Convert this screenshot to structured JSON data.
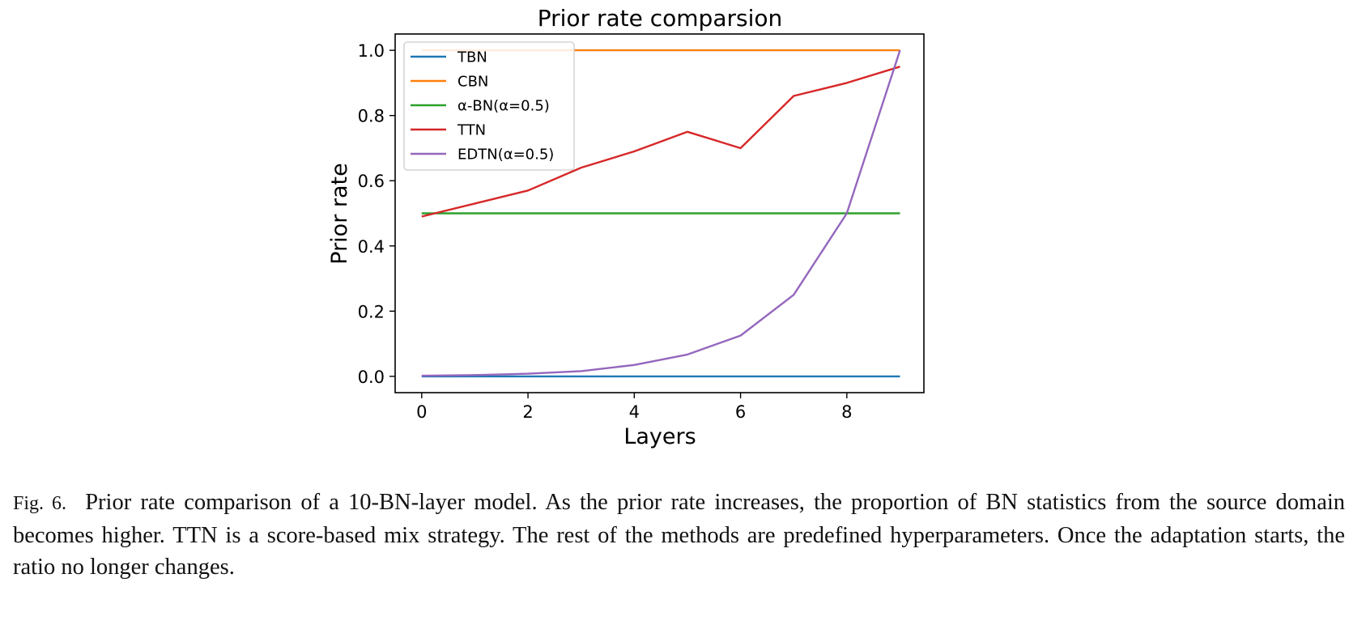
{
  "chart_data": {
    "type": "line",
    "title": "Prior rate comparsion",
    "xlabel": "Layers",
    "ylabel": "Prior rate",
    "xlim": [
      -0.5,
      9.45
    ],
    "ylim": [
      -0.05,
      1.05
    ],
    "xticks": [
      0,
      2,
      4,
      6,
      8
    ],
    "yticks": [
      0.0,
      0.2,
      0.4,
      0.6,
      0.8,
      1.0
    ],
    "ytick_labels": [
      "0.0",
      "0.2",
      "0.4",
      "0.6",
      "0.8",
      "1.0"
    ],
    "grid": false,
    "legend_position": "top-left",
    "x": [
      0,
      1,
      2,
      3,
      4,
      5,
      6,
      7,
      8,
      9
    ],
    "series": [
      {
        "name": "TBN",
        "color": "#1f77b4",
        "values": [
          0,
          0,
          0,
          0,
          0,
          0,
          0,
          0,
          0,
          0
        ]
      },
      {
        "name": "CBN",
        "color": "#ff7f0e",
        "values": [
          1,
          1,
          1,
          1,
          1,
          1,
          1,
          1,
          1,
          1
        ]
      },
      {
        "name": "α-BN(α=0.5)",
        "color": "#2ca02c",
        "values": [
          0.5,
          0.5,
          0.5,
          0.5,
          0.5,
          0.5,
          0.5,
          0.5,
          0.5,
          0.5
        ]
      },
      {
        "name": "TTN",
        "color": "#d62728",
        "values": [
          0.49,
          0.53,
          0.57,
          0.64,
          0.69,
          0.75,
          0.7,
          0.86,
          0.9,
          0.95
        ]
      },
      {
        "name": "EDTN(α=0.5)",
        "color": "#9467bd",
        "values": [
          0.002,
          0.004,
          0.008,
          0.016,
          0.035,
          0.067,
          0.125,
          0.25,
          0.5,
          1.0
        ]
      }
    ]
  },
  "caption": {
    "label": "Fig. 6.",
    "text": "Prior rate comparison of a 10-BN-layer model. As the prior rate increases, the proportion of BN statistics from the source domain becomes higher. TTN is a score-based mix strategy. The rest of the methods are predefined hyperparameters. Once the adaptation starts, the ratio no longer changes."
  }
}
